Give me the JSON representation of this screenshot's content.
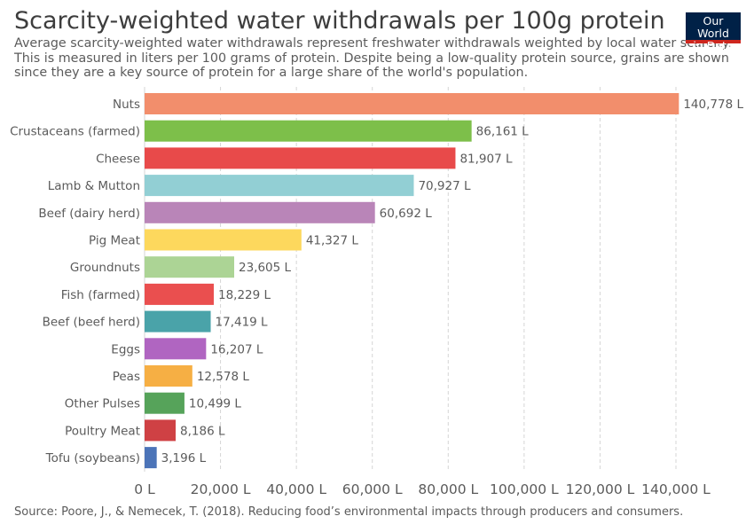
{
  "header": {
    "title": "Scarcity-weighted water withdrawals per 100g protein",
    "subtitle_lines": [
      "Average scarcity-weighted water withdrawals represent freshwater withdrawals weighted by local water scarcity.",
      "This is measured in liters per 100 grams of protein. Despite being a low-quality protein source, grains are shown",
      "since they are a key source of protein for a large share of the world's population."
    ],
    "logo_line1": "Our World",
    "logo_line2": "in Data"
  },
  "footer": {
    "source": "Source: Poore, J., & Nemecek, T. (2018). Reducing food’s environmental impacts through producers and consumers."
  },
  "chart_data": {
    "type": "bar",
    "orientation": "horizontal",
    "unit": "L",
    "xlim": [
      0,
      140000
    ],
    "xticks": [
      0,
      20000,
      40000,
      60000,
      80000,
      100000,
      120000,
      140000
    ],
    "xtick_labels": [
      "0 L",
      "20,000 L",
      "40,000 L",
      "60,000 L",
      "80,000 L",
      "100,000 L",
      "120,000 L",
      "140,000 L"
    ],
    "grid": "vertical-dashed",
    "categories": [
      "Nuts",
      "Crustaceans (farmed)",
      "Cheese",
      "Lamb & Mutton",
      "Beef (dairy herd)",
      "Pig Meat",
      "Groundnuts",
      "Fish (farmed)",
      "Beef (beef herd)",
      "Eggs",
      "Peas",
      "Other Pulses",
      "Poultry Meat",
      "Tofu (soybeans)"
    ],
    "values": [
      140778,
      86161,
      81907,
      70927,
      60692,
      41327,
      23605,
      18229,
      17419,
      16207,
      12578,
      10499,
      8186,
      3196
    ],
    "value_labels": [
      "140,778 L",
      "86,161 L",
      "81,907 L",
      "70,927 L",
      "60,692 L",
      "41,327 L",
      "23,605 L",
      "18,229 L",
      "17,419 L",
      "16,207 L",
      "12,578 L",
      "10,499 L",
      "8,186 L",
      "3,196 L"
    ],
    "colors": [
      "#f28e6c",
      "#7dbf4a",
      "#e84a4a",
      "#92cfd4",
      "#b985b8",
      "#fdd85d",
      "#acd495",
      "#ea4f4f",
      "#4aa3a9",
      "#b065c1",
      "#f6af44",
      "#56a35a",
      "#cf4144",
      "#4c74b8"
    ]
  }
}
